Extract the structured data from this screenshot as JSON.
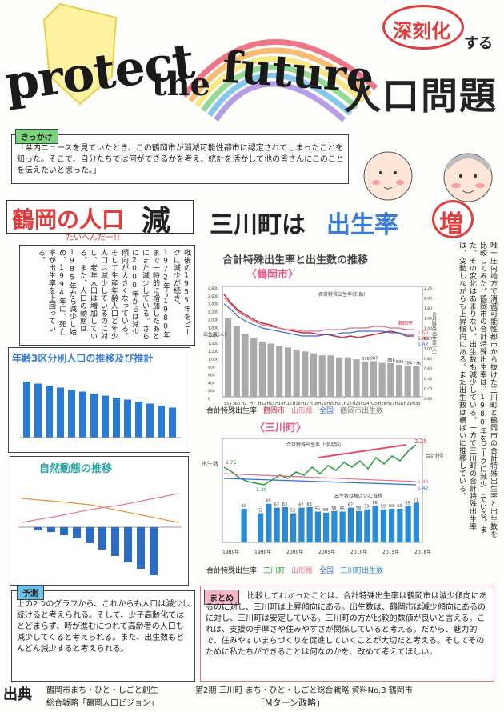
{
  "header": {
    "title_protect": "protect",
    "title_the": "the",
    "title_future": "future",
    "badge_shinkoku": "深刻化",
    "badge_suru": "する",
    "title_jinko": "人口問題"
  },
  "kikkake": {
    "label": "きっかけ",
    "text": "「県内ニュースを見ていたとき、この鶴岡市が消滅可能性都市に認定されてしまったことを知った。そこで、自分たちでは何ができるかを考え、統計を活かして他の皆さんにこのことを伝えたいと思った。」"
  },
  "left_heading": {
    "main": "鶴岡の人口",
    "emph": "減",
    "sub": "たいへんだー!!"
  },
  "right_heading": {
    "main_a": "三川町は",
    "main_b": "出生率",
    "emph": "増"
  },
  "left_column_text": "戦後の1955年をピークに減少が続き、1972年〜1980年まで一時的に増加したあとにまた減少している。さらに2000年からは減少傾向が大きくなっている。そして生産年齢人口と年少人口は減少しているのに対し、老年人口は増加している。また、人口の動態は1985年から減少し始め、1994年に、死亡率が出生率を上回っている。",
  "right_column_text": "唯一庄内地方で消滅可能性都市から抜けた三川町と鶴岡市の合計特殊出生率と出生数を比較してみた。鶴岡市の合計特殊出生率は、1980年をピークに減少している。また、その変化はあまりない。出生数も減少している。一方で三川町の合計特殊出生率は、変動しながらも上昇傾向にある。また出生数は横ばいに推移している。",
  "left_column_highlights": {
    "h1": "大きく"
  },
  "age_chart_title": "年齢3区分別人口の推移及び推計",
  "dynamics_chart_title": "自然動態の推移",
  "center_chart_title": "合計特殊出生率と出生数の推移",
  "tsuruoka_label": "〈鶴岡市〉",
  "mikawa_label": "〈三川町〉",
  "tsuruoka_chart": {
    "x_labels": [
      "S55",
      "S60",
      "H2",
      "H7",
      "H12",
      "H13",
      "H14",
      "H15",
      "H16",
      "H17",
      "H18",
      "H19",
      "H20",
      "H21",
      "H22",
      "H23",
      "H24",
      "H25",
      "H26",
      "H27",
      "H28",
      "H29",
      "H30"
    ],
    "births": [
      2000,
      1800,
      1600,
      1500,
      1400,
      1350,
      1300,
      1250,
      1200,
      1150,
      1100,
      1050,
      1050,
      1000,
      1000,
      950,
      896,
      907,
      860,
      856,
      809,
      784,
      776
    ],
    "bar_labels": [
      "",
      "",
      "",
      "",
      "",
      "",
      "",
      "",
      "",
      "",
      "",
      "",
      "",
      "",
      "",
      "",
      "896",
      "907",
      "",
      "856",
      "809",
      "784",
      "776"
    ],
    "pref_rate_end": "1.59",
    "city_rate_end": "1.48",
    "nat_rate_end": "1.42",
    "legend_title": "合計特殊出生率(右軸)",
    "city_tag": "鶴岡市",
    "y_left": [
      "2,800",
      "2,600",
      "2,400",
      "2,200",
      "2,000",
      "1,800",
      "1,600",
      "1,400",
      "1,200",
      "1,000",
      "800",
      "600",
      "400",
      "200",
      "0"
    ],
    "y_right": [
      "2.20",
      "2.00",
      "1.80",
      "1.60",
      "1.40",
      "1.20",
      "1.00",
      "0.80",
      "0.60",
      "0.40",
      "0.20",
      "0.00"
    ],
    "y_left_label": "出生数(人)",
    "y_right_label": "合計特殊出生率(人)",
    "legend": [
      "合計特殊出生率",
      "鶴岡市",
      "山形県",
      "全国",
      "鶴岡市出生数"
    ]
  },
  "mikawa_chart": {
    "births_labels": [
      "",
      "",
      "60",
      "",
      "52",
      "69",
      "62",
      "63",
      "52",
      "62",
      "63",
      "55",
      "53",
      "56",
      "55",
      "62",
      "56",
      "59",
      "66",
      "59",
      "60",
      "60",
      "65",
      "71"
    ],
    "rate_start": "1.75",
    "rate_low": "1.39",
    "rate_end": "2.25",
    "pref_end": "1.48",
    "nat_end": "1.42",
    "note_up": "合計特殊出生率 上昇傾向",
    "note_flat": "出生数は横ばいに推移",
    "left_axis_label": "出生数",
    "right_axis_label": "合計特殊出生率",
    "x_labels": [
      "1980年",
      "1990年",
      "2000年",
      "2005年",
      "2010年",
      "2015年",
      "2018年"
    ],
    "legend": [
      "合計特殊出生率",
      "三川町",
      "山形県",
      "全国",
      "三川町出生数"
    ]
  },
  "yosoku": {
    "label": "予測",
    "text": "上の2つのグラフから、これからも人口は減少し続けると考えられる。そして、少子高齢化ではとどまらず、時が進むにつれて高齢者の人口も減少してくると考えられる。また、出生数もどんどん減少すると考えられる。"
  },
  "matome": {
    "label": "まとめ",
    "text": "比較してわかったことは、合計特殊出生率は鶴岡市は減少傾向にあるのに対し、三川町は上昇傾向にある。出生数は、鶴岡市は減少傾向にあるのに対し、三川町は安定している。三川町の方が比較的数値が良いと言える。これは、支援の手厚さや住みやすさが関係していると考える。だから、魅力的で、住みやすいまちづくりを促進していくことが大切だと考える。そしてそのために私たちができることは何なのかを、改めて考えてほしい。"
  },
  "footer": {
    "source_label": "出典",
    "source1": "鶴岡市まち・ひと・しごと創生",
    "source2": "総合戦略「鶴岡人口ビジョン」",
    "source3": "第2期 三川町 まち・ひと・しごと総合戦略 資料No.3 鶴岡市",
    "source4": "「Mターン政略」"
  }
}
